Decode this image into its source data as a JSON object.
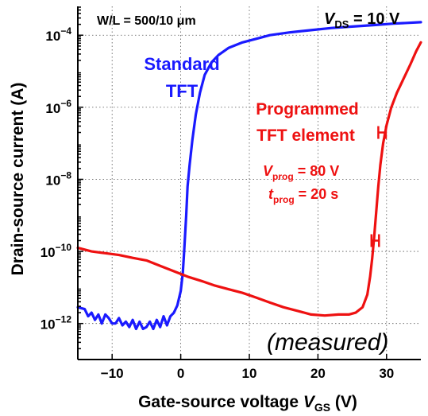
{
  "chart_data": {
    "type": "line",
    "xlabel_prefix": "Gate-source voltage ",
    "xlabel_var": "V",
    "xlabel_sub": "GS",
    "xlabel_unit": " (V)",
    "ylabel": "Drain-source current (A)",
    "xlim": [
      -15,
      35
    ],
    "ylim_log10": [
      -13,
      -3.2
    ],
    "y_scale": "log",
    "grid": true,
    "x_ticks": [
      -10,
      0,
      10,
      20,
      30
    ],
    "x_tick_labels": [
      "−10",
      "0",
      "10",
      "20",
      "30"
    ],
    "y_ticks_log10": [
      -12,
      -10,
      -8,
      -6,
      -4
    ],
    "y_tick_labels": [
      {
        "base": "10",
        "exp": "−12"
      },
      {
        "base": "10",
        "exp": "−10"
      },
      {
        "base": "10",
        "exp": "−8"
      },
      {
        "base": "10",
        "exp": "−6"
      },
      {
        "base": "10",
        "exp": "−4"
      }
    ],
    "annotations": {
      "geometry": "W/L = 500/10 μm",
      "vds_var": "V",
      "vds_sub": "DS",
      "vds_value": " = 10 V",
      "measured": "(measured)",
      "vprog_var": "V",
      "vprog_sub": "prog",
      "vprog_value": " = 80 V",
      "tprog_var": "t",
      "tprog_sub": "prog",
      "tprog_value": " = 20 s"
    },
    "series": [
      {
        "name_line1": "Standard",
        "name_line2": "TFT",
        "color": "#1a1aff",
        "points": [
          [
            -15,
            -11.55
          ],
          [
            -14,
            -11.6
          ],
          [
            -13.5,
            -11.8
          ],
          [
            -13,
            -11.7
          ],
          [
            -12.5,
            -11.9
          ],
          [
            -12,
            -11.75
          ],
          [
            -11.5,
            -12.0
          ],
          [
            -11,
            -11.75
          ],
          [
            -10.5,
            -11.85
          ],
          [
            -10,
            -12.0
          ],
          [
            -9.5,
            -12.0
          ],
          [
            -9,
            -11.85
          ],
          [
            -8.5,
            -12.05
          ],
          [
            -8,
            -11.95
          ],
          [
            -7.5,
            -12.1
          ],
          [
            -7,
            -11.9
          ],
          [
            -6.5,
            -12.15
          ],
          [
            -6,
            -11.95
          ],
          [
            -5.5,
            -12.15
          ],
          [
            -5,
            -12.1
          ],
          [
            -4.5,
            -11.95
          ],
          [
            -4,
            -12.15
          ],
          [
            -3.5,
            -11.9
          ],
          [
            -3,
            -12.1
          ],
          [
            -2.5,
            -11.8
          ],
          [
            -2,
            -12.05
          ],
          [
            -1.5,
            -11.8
          ],
          [
            -1,
            -11.7
          ],
          [
            -0.5,
            -11.5
          ],
          [
            0,
            -11.1
          ],
          [
            0.3,
            -10.6
          ],
          [
            0.5,
            -10.0
          ],
          [
            0.8,
            -9.0
          ],
          [
            1.0,
            -8.2
          ],
          [
            1.3,
            -7.6
          ],
          [
            1.7,
            -6.9
          ],
          [
            2.2,
            -6.2
          ],
          [
            2.8,
            -5.6
          ],
          [
            3.5,
            -5.1
          ],
          [
            4.5,
            -4.75
          ],
          [
            5.5,
            -4.55
          ],
          [
            7,
            -4.35
          ],
          [
            9,
            -4.2
          ],
          [
            11,
            -4.1
          ],
          [
            13,
            -4.0
          ],
          [
            16,
            -3.92
          ],
          [
            19,
            -3.86
          ],
          [
            22,
            -3.8
          ],
          [
            25,
            -3.76
          ],
          [
            28,
            -3.72
          ],
          [
            31,
            -3.68
          ],
          [
            33,
            -3.66
          ],
          [
            35,
            -3.64
          ]
        ]
      },
      {
        "name_line1": "Programmed",
        "name_line2": "TFT element",
        "color": "#ee1111",
        "points": [
          [
            -15,
            -9.9
          ],
          [
            -13,
            -10.0
          ],
          [
            -11,
            -10.05
          ],
          [
            -9,
            -10.1
          ],
          [
            -7,
            -10.18
          ],
          [
            -5,
            -10.25
          ],
          [
            -3,
            -10.4
          ],
          [
            -1,
            -10.55
          ],
          [
            1,
            -10.7
          ],
          [
            3,
            -10.82
          ],
          [
            5,
            -10.95
          ],
          [
            7,
            -11.05
          ],
          [
            9,
            -11.15
          ],
          [
            11,
            -11.28
          ],
          [
            13,
            -11.42
          ],
          [
            15,
            -11.55
          ],
          [
            17,
            -11.65
          ],
          [
            19,
            -11.75
          ],
          [
            21,
            -11.78
          ],
          [
            23,
            -11.75
          ],
          [
            24.5,
            -11.75
          ],
          [
            25.5,
            -11.7
          ],
          [
            26.5,
            -11.55
          ],
          [
            27.2,
            -11.2
          ],
          [
            27.6,
            -10.7
          ],
          [
            27.9,
            -10.2
          ],
          [
            28.2,
            -9.6
          ],
          [
            28.5,
            -8.9
          ],
          [
            28.8,
            -8.2
          ],
          [
            29.1,
            -7.6
          ],
          [
            29.5,
            -7.0
          ],
          [
            30,
            -6.5
          ],
          [
            30.7,
            -6.0
          ],
          [
            31.5,
            -5.6
          ],
          [
            32.5,
            -5.2
          ],
          [
            33.5,
            -4.8
          ],
          [
            34.3,
            -4.45
          ],
          [
            35,
            -4.2
          ]
        ],
        "error_bars": [
          {
            "x_low": 27.8,
            "x_high": 28.9,
            "y_log10": -9.7
          },
          {
            "x_low": 28.8,
            "x_high": 29.9,
            "y_log10": -6.7
          }
        ]
      }
    ]
  }
}
